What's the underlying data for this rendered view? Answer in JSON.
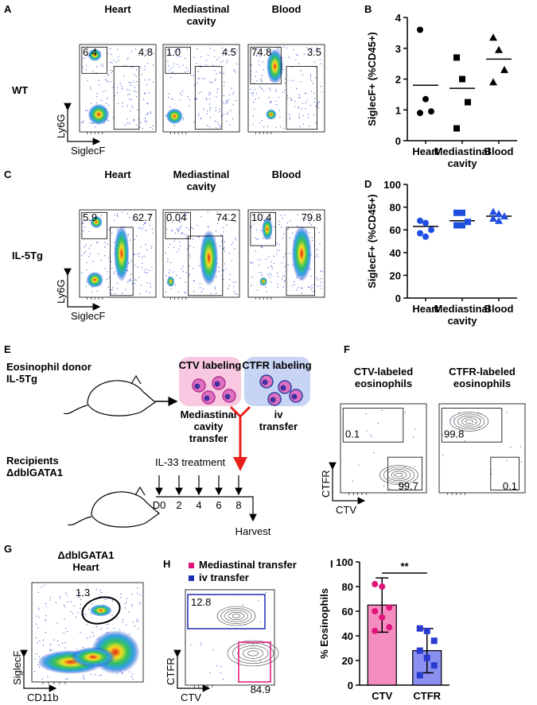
{
  "panel_labels": [
    "A",
    "B",
    "C",
    "D",
    "E",
    "F",
    "G",
    "H",
    "I"
  ],
  "panel_a": {
    "row_label": "WT",
    "y_axis": "Ly6G",
    "x_axis": "SiglecF",
    "columns": [
      {
        "title": "Heart",
        "gates": [
          "6.4",
          "4.8"
        ]
      },
      {
        "title": "Mediastinal\ncavity",
        "gates": [
          "1.0",
          "4.5"
        ]
      },
      {
        "title": "Blood",
        "gates": [
          "74.8",
          "3.5"
        ]
      }
    ]
  },
  "panel_c": {
    "row_label": "IL-5Tg",
    "y_axis": "Ly6G",
    "x_axis": "SiglecF",
    "columns": [
      {
        "title": "Heart",
        "gates": [
          "5.9",
          "62.7"
        ]
      },
      {
        "title": "Mediastinal\ncavity",
        "gates": [
          "0.04",
          "74.2"
        ]
      },
      {
        "title": "Blood",
        "gates": [
          "10.4",
          "79.8"
        ]
      }
    ]
  },
  "chart_data": [
    {
      "type": "strip",
      "categories": [
        "Heart",
        "Mediastinal\ncavity",
        "Blood"
      ],
      "ylabel": "SiglecF+ (%CD45+)",
      "values": [
        [
          3.6,
          1.35,
          0.95,
          0.9
        ],
        [
          2.7,
          2.0,
          1.25,
          0.4
        ],
        [
          3.35,
          2.95,
          2.3,
          1.9
        ]
      ],
      "means": [
        1.8,
        1.7,
        2.65
      ],
      "markers": [
        "circle",
        "square",
        "triangle"
      ],
      "color": "#000000",
      "ylim": [
        0,
        4
      ],
      "yticks": [
        0,
        1,
        2,
        3,
        4
      ]
    },
    {
      "type": "strip",
      "categories": [
        "Heart",
        "Mediastinal\ncavity",
        "Blood"
      ],
      "ylabel": "SiglecF+ (%CD45+)",
      "values": [
        [
          68,
          66,
          60,
          57,
          54
        ],
        [
          75,
          75,
          67,
          64,
          64
        ],
        [
          76,
          74,
          72,
          70,
          68
        ]
      ],
      "means": [
        63,
        68,
        72
      ],
      "markers": [
        "circle",
        "square",
        "triangle"
      ],
      "color": "#1f4fe0",
      "ylim": [
        0,
        100
      ],
      "yticks": [
        0,
        20,
        40,
        60,
        80,
        100
      ]
    },
    {
      "type": "bar",
      "categories": [
        "CTV",
        "CTFR"
      ],
      "ylabel": "% Eosinophils",
      "values": [
        65,
        28
      ],
      "errors": [
        22,
        18
      ],
      "points": [
        [
          82,
          80,
          63,
          60,
          55,
          47,
          44
        ],
        [
          46,
          44,
          36,
          28,
          22,
          16,
          8
        ]
      ],
      "colors": [
        "#f58dc0",
        "#8a8ff0"
      ],
      "point_colors": [
        "#e0157a",
        "#2a3ad0"
      ],
      "ylim": [
        0,
        100
      ],
      "yticks": [
        0,
        20,
        40,
        60,
        80,
        100
      ],
      "annotation": "**"
    }
  ],
  "panel_e": {
    "donor": "Eosinophil donor\nIL-5Tg",
    "ctv_label": "CTV labeling",
    "ctfr_label": "CTFR labeling",
    "ctv_route": "Mediastinal\ncavity\ntransfer",
    "ctfr_route": "iv\ntransfer",
    "recipients": "Recipients\nΔdblGATA1",
    "treatment": "IL-33 treatment",
    "days": [
      "D0",
      "2",
      "4",
      "6",
      "8"
    ],
    "end": "Harvest"
  },
  "panel_f": {
    "y_axis": "CTFR",
    "x_axis": "CTV",
    "columns": [
      {
        "title": "CTV-labeled\neosinophils",
        "gates": [
          "0.1",
          "99.7"
        ]
      },
      {
        "title": "CTFR-labeled\neosinophils",
        "gates": [
          "99.8",
          "0.1"
        ]
      }
    ]
  },
  "panel_g": {
    "title": "ΔdblGATA1\nHeart",
    "gate": "1.3",
    "y_axis": "SiglecF",
    "x_axis": "CD11b"
  },
  "panel_h": {
    "legend": [
      {
        "label": "Mediastinal transfer",
        "color": "#e0157a"
      },
      {
        "label": "iv transfer",
        "color": "#1a2fb0"
      }
    ],
    "gates": [
      "12.8",
      "84.9"
    ],
    "y_axis": "CTFR",
    "x_axis": "CTV"
  }
}
